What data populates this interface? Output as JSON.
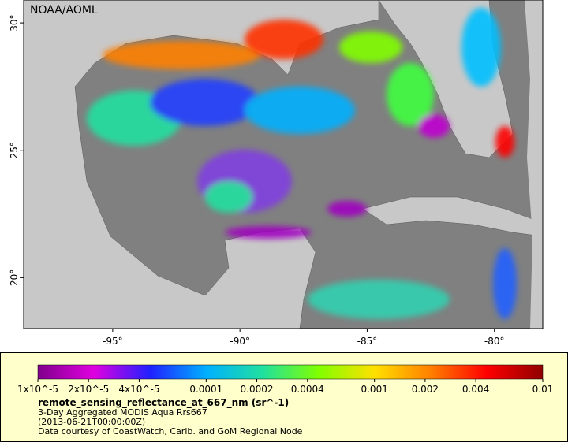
{
  "map": {
    "watermark": "NOAA/AOML",
    "lonlim": [
      -98.5,
      -78.1
    ],
    "latlim": [
      18,
      30.9
    ],
    "lon_ticks": [
      {
        "value": -95,
        "label": "-95°"
      },
      {
        "value": -90,
        "label": "-90°"
      },
      {
        "value": -85,
        "label": "-85°"
      },
      {
        "value": -80,
        "label": "-80°"
      }
    ],
    "lat_ticks": [
      {
        "value": 30,
        "label": "30°"
      },
      {
        "value": 25,
        "label": "25°"
      },
      {
        "value": 20,
        "label": "20°"
      }
    ]
  },
  "colorbar": {
    "log_scale": true,
    "lim": [
      1e-05,
      0.01
    ],
    "colors": [
      "#80008c",
      "#e000e0",
      "#2020ff",
      "#00b0ff",
      "#20e0a0",
      "#80ff00",
      "#ffe000",
      "#ff8000",
      "#ff0000",
      "#900000"
    ],
    "ticks": [
      {
        "value": 1e-05,
        "label": "1x10^-5"
      },
      {
        "value": 2e-05,
        "label": "2x10^-5"
      },
      {
        "value": 4e-05,
        "label": "4x10^-5"
      },
      {
        "value": 0.0001,
        "label": "0.0001"
      },
      {
        "value": 0.0002,
        "label": "0.0002"
      },
      {
        "value": 0.0004,
        "label": "0.0004"
      },
      {
        "value": 0.001,
        "label": "0.001"
      },
      {
        "value": 0.002,
        "label": "0.002"
      },
      {
        "value": 0.004,
        "label": "0.004"
      },
      {
        "value": 0.01,
        "label": "0.01"
      }
    ]
  },
  "legend": {
    "title": "remote_sensing_reflectance_at_667_nm (sr^-1)",
    "lines": [
      "3-Day Aggregated MODIS Aqua Rrs667",
      "(2013-06-21T00:00:00Z)",
      "Data courtesy of CoastWatch, Carib. and GoM Regional Node"
    ]
  }
}
